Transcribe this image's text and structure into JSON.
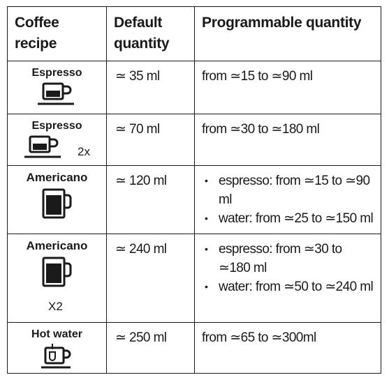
{
  "header": {
    "col1": "Coffee recipe",
    "col2": "Default quantity",
    "col3": "Programmable quantity"
  },
  "rows": [
    {
      "name": "Espresso",
      "multiplier": "",
      "icon": "espresso-cup-icon",
      "default": "≃ 35 ml",
      "programmable": "from ≃15 to ≃90 ml"
    },
    {
      "name": "Espresso",
      "multiplier": "2x",
      "icon": "espresso-cup-icon",
      "default": "≃ 70 ml",
      "programmable": "from ≃30 to ≃180 ml"
    },
    {
      "name": "Americano",
      "multiplier": "",
      "icon": "mug-icon",
      "default": "≃ 120 ml",
      "bullets": [
        "espresso: from ≃15 to ≃90 ml",
        "water: from ≃25 to ≃150 ml"
      ]
    },
    {
      "name": "Americano",
      "multiplier": "X2",
      "icon": "mug-icon",
      "default": "≃ 240 ml",
      "bullets": [
        "espresso:  from  ≃30  to  ≃180 ml",
        "water: from ≃50 to ≃240 ml"
      ]
    },
    {
      "name": "Hot water",
      "multiplier": "",
      "icon": "hot-water-cup-icon",
      "default": "≃ 250 ml",
      "programmable": "from ≃65 to ≃300ml"
    }
  ]
}
